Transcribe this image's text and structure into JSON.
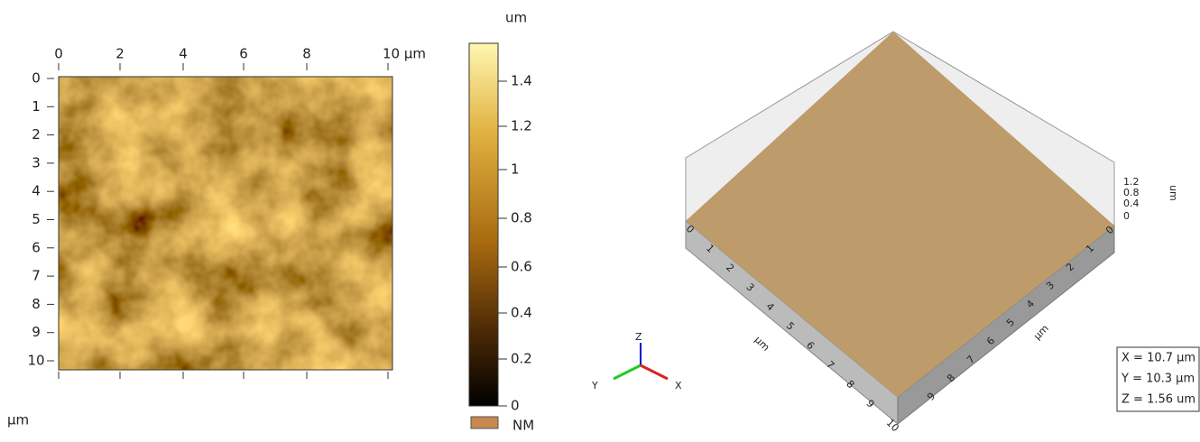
{
  "afm_2d": {
    "x_ticks": [
      "0",
      "2",
      "4",
      "6",
      "8",
      "10 µm"
    ],
    "y_ticks": [
      "0",
      "1",
      "2",
      "3",
      "4",
      "5",
      "6",
      "7",
      "8",
      "9",
      "10"
    ],
    "y_unit": "µm"
  },
  "colorbar": {
    "unit": "um",
    "ticks": [
      "1.4",
      "1.2",
      "1",
      "0.8",
      "0.6",
      "0.4",
      "0.2",
      "0"
    ],
    "legend": "NM"
  },
  "view_3d": {
    "triad": {
      "z": "Z",
      "y": "Y",
      "x": "X"
    },
    "z_ticks": [
      "1.2",
      "0.8",
      "0.4",
      "0"
    ],
    "z_unit": "um",
    "left_ticks": [
      "0",
      "1",
      "2",
      "3",
      "4",
      "5",
      "6",
      "7",
      "8",
      "9",
      "10"
    ],
    "left_unit": "µm",
    "right_ticks": [
      "0",
      "1",
      "2",
      "3",
      "4",
      "5",
      "6",
      "7",
      "8",
      "9"
    ],
    "right_unit": "µm",
    "info": [
      "X = 10.7 µm",
      "Y = 10.3 µm",
      "Z = 1.56 um"
    ]
  }
}
